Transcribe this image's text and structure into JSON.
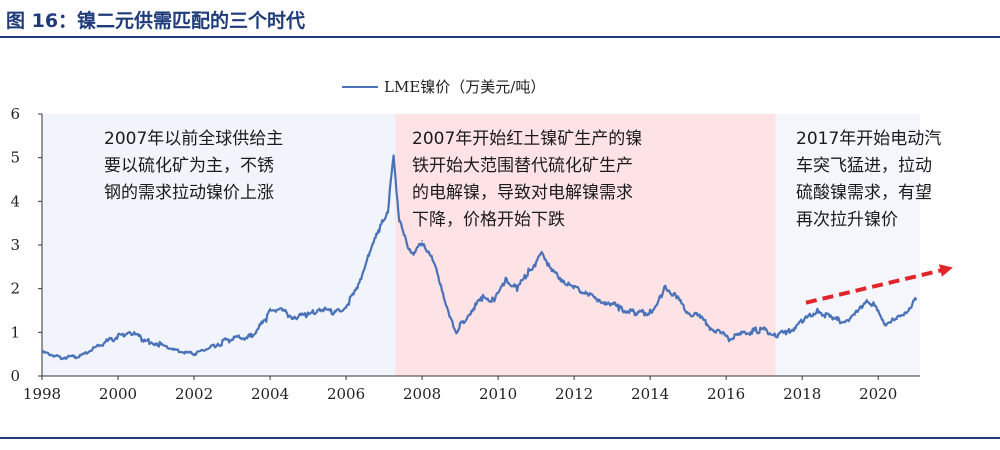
{
  "header": {
    "title": "图 16：镍二元供需匹配的三个时代"
  },
  "chart_data": {
    "type": "line",
    "title": "",
    "xlabel": "",
    "ylabel": "",
    "xlim": [
      1998,
      2021.1
    ],
    "ylim": [
      0,
      6
    ],
    "x_ticks": [
      "1998",
      "2000",
      "2002",
      "2004",
      "2006",
      "2008",
      "2010",
      "2012",
      "2014",
      "2016",
      "2018",
      "2020"
    ],
    "y_ticks": [
      "0",
      "1",
      "2",
      "3",
      "4",
      "5",
      "6"
    ],
    "grid": false,
    "legend": {
      "placement": "top-center",
      "entries": [
        "LME镍价（万美元/吨）"
      ]
    },
    "colors": {
      "line": "#4a72b8",
      "era1_bg": "#f1f4fa",
      "era2_bg": "#fde3e6",
      "era3_bg": "#f4f6fb",
      "arrow": "#e0262b"
    },
    "eras": [
      {
        "start": 1998,
        "end": 2007.3,
        "text": [
          "2007年以前全球供给主",
          "要以硫化矿为主，不锈",
          "钢的需求拉动镍价上涨"
        ]
      },
      {
        "start": 2007.3,
        "end": 2017.3,
        "text": [
          "2007年开始红土镍矿生产的镍",
          "铁开始大范围替代硫化矿生产",
          "的电解镍，导致对电解镍需求",
          "下降，价格开始下跌"
        ]
      },
      {
        "start": 2017.3,
        "end": 2021.1,
        "text": [
          "2017年开始电动汽",
          "车突飞猛进，拉动",
          "硫酸镍需求，有望",
          "再次拉升镍价"
        ]
      }
    ],
    "trend_arrow": {
      "from": [
        2018.1,
        1.68
      ],
      "to": [
        2021.9,
        2.47
      ]
    },
    "series": [
      {
        "name": "LME镍价（万美元/吨）",
        "x": [
          1998.0,
          1998.5,
          1999.0,
          1999.5,
          2000.0,
          2000.3,
          2000.7,
          2001.0,
          2001.5,
          2002.0,
          2002.5,
          2003.0,
          2003.5,
          2003.9,
          2004.0,
          2004.3,
          2004.6,
          2005.0,
          2005.3,
          2005.7,
          2006.0,
          2006.3,
          2006.6,
          2006.9,
          2007.1,
          2007.25,
          2007.4,
          2007.6,
          2007.8,
          2008.0,
          2008.3,
          2008.5,
          2008.7,
          2008.9,
          2009.0,
          2009.3,
          2009.6,
          2009.9,
          2010.2,
          2010.5,
          2010.8,
          2011.0,
          2011.15,
          2011.4,
          2011.7,
          2012.0,
          2012.3,
          2012.6,
          2012.9,
          2013.2,
          2013.6,
          2014.0,
          2014.3,
          2014.4,
          2014.7,
          2015.0,
          2015.3,
          2015.6,
          2015.9,
          2016.1,
          2016.4,
          2016.8,
          2017.0,
          2017.3,
          2017.6,
          2018.0,
          2018.4,
          2018.8,
          2019.1,
          2019.4,
          2019.7,
          2019.9,
          2020.2,
          2020.5,
          2020.8,
          2021.0
        ],
        "y": [
          0.55,
          0.42,
          0.45,
          0.7,
          0.9,
          1.02,
          0.8,
          0.75,
          0.6,
          0.5,
          0.7,
          0.85,
          0.9,
          1.3,
          1.55,
          1.5,
          1.35,
          1.4,
          1.55,
          1.45,
          1.6,
          2.0,
          2.8,
          3.4,
          3.8,
          5.0,
          3.6,
          3.0,
          2.8,
          3.1,
          2.6,
          2.1,
          1.4,
          1.0,
          1.15,
          1.5,
          1.8,
          1.75,
          2.2,
          2.0,
          2.4,
          2.6,
          2.85,
          2.4,
          2.2,
          2.0,
          1.95,
          1.7,
          1.7,
          1.55,
          1.45,
          1.45,
          1.85,
          2.05,
          1.8,
          1.45,
          1.35,
          1.1,
          0.95,
          0.85,
          0.95,
          1.05,
          1.05,
          0.95,
          0.98,
          1.25,
          1.5,
          1.3,
          1.25,
          1.4,
          1.75,
          1.6,
          1.2,
          1.3,
          1.55,
          1.75
        ]
      }
    ]
  }
}
